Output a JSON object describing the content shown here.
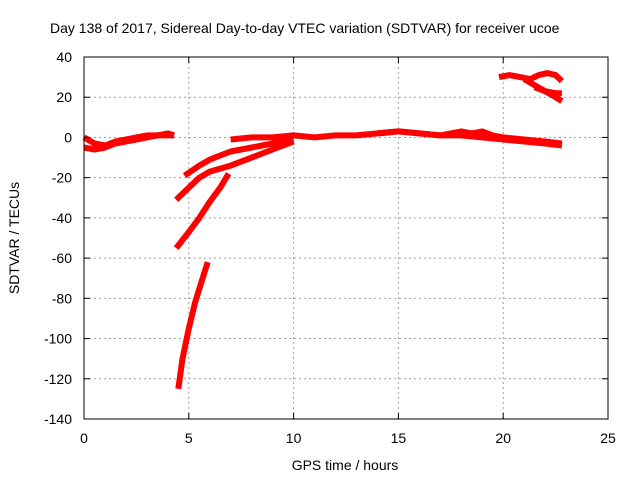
{
  "chart_data": {
    "type": "scatter",
    "title": "Day 138 of 2017, Sidereal Day-to-day VTEC variation (SDTVAR) for receiver ucoe",
    "xlabel": "GPS time / hours",
    "ylabel": "SDTVAR / TECUs",
    "xlim": [
      0,
      25
    ],
    "ylim": [
      -140,
      40
    ],
    "xticks": [
      0,
      5,
      10,
      15,
      20,
      25
    ],
    "yticks": [
      -140,
      -120,
      -100,
      -80,
      -60,
      -40,
      -20,
      0,
      20,
      40
    ],
    "grid": true,
    "legend": "none",
    "color": "#ff0000",
    "series": [
      {
        "x": [
          0.0,
          0.5,
          1.0,
          1.5,
          2.0,
          2.5,
          3.0,
          3.5,
          4.0,
          4.3
        ],
        "y": [
          -5,
          -6,
          -5,
          -3,
          -2,
          -1,
          0,
          1,
          1,
          1
        ]
      },
      {
        "x": [
          0.0,
          0.5,
          1.0,
          1.5,
          2.0,
          2.5,
          3.0,
          3.5,
          4.0,
          4.3
        ],
        "y": [
          0,
          -3,
          -4,
          -2,
          -1,
          0,
          1,
          1,
          2,
          1
        ]
      },
      {
        "x": [
          4.5,
          4.7,
          5.0,
          5.3,
          5.6,
          5.9
        ],
        "y": [
          -125,
          -110,
          -95,
          -82,
          -72,
          -62
        ]
      },
      {
        "x": [
          4.4,
          5.0,
          5.5,
          6.0,
          6.5,
          6.9
        ],
        "y": [
          -55,
          -47,
          -40,
          -32,
          -25,
          -18
        ]
      },
      {
        "x": [
          4.4,
          5.0,
          5.5,
          6.0,
          7.0,
          8.0,
          9.0,
          10.0
        ],
        "y": [
          -31,
          -25,
          -20,
          -17,
          -14,
          -10,
          -6,
          -2
        ]
      },
      {
        "x": [
          4.8,
          5.5,
          6.0,
          6.5,
          7.0,
          8.0,
          9.0,
          10.0
        ],
        "y": [
          -19,
          -14,
          -11,
          -9,
          -7,
          -5,
          -3,
          -1
        ]
      },
      {
        "x": [
          7.0,
          8.0,
          9.0,
          10.0,
          11.0,
          12.0,
          13.0,
          14.0,
          15.0,
          16.0,
          17.0,
          18.0,
          19.0,
          20.0,
          21.0,
          22.0,
          22.8
        ],
        "y": [
          -1,
          0,
          0,
          1,
          0,
          1,
          1,
          2,
          3,
          2,
          1,
          1,
          0,
          -1,
          -2,
          -3,
          -4
        ]
      },
      {
        "x": [
          14.0,
          15.0,
          16.0,
          17.0,
          17.5,
          18.0,
          18.5,
          19.0,
          19.5,
          20.0,
          21.0,
          22.0,
          22.8
        ],
        "y": [
          2,
          3,
          2,
          1,
          2,
          3,
          2,
          3,
          1,
          0,
          -1,
          -2,
          -3
        ]
      },
      {
        "x": [
          19.8,
          20.3,
          20.8,
          21.3,
          21.7,
          22.1,
          22.5,
          22.8
        ],
        "y": [
          30,
          31,
          30,
          29,
          31,
          32,
          31,
          28
        ]
      },
      {
        "x": [
          21.0,
          21.5,
          22.0,
          22.5,
          22.8
        ],
        "y": [
          29,
          26,
          23,
          20,
          18
        ]
      },
      {
        "x": [
          21.5,
          22.0,
          22.5,
          22.8
        ],
        "y": [
          25,
          23,
          22,
          22
        ]
      }
    ]
  }
}
